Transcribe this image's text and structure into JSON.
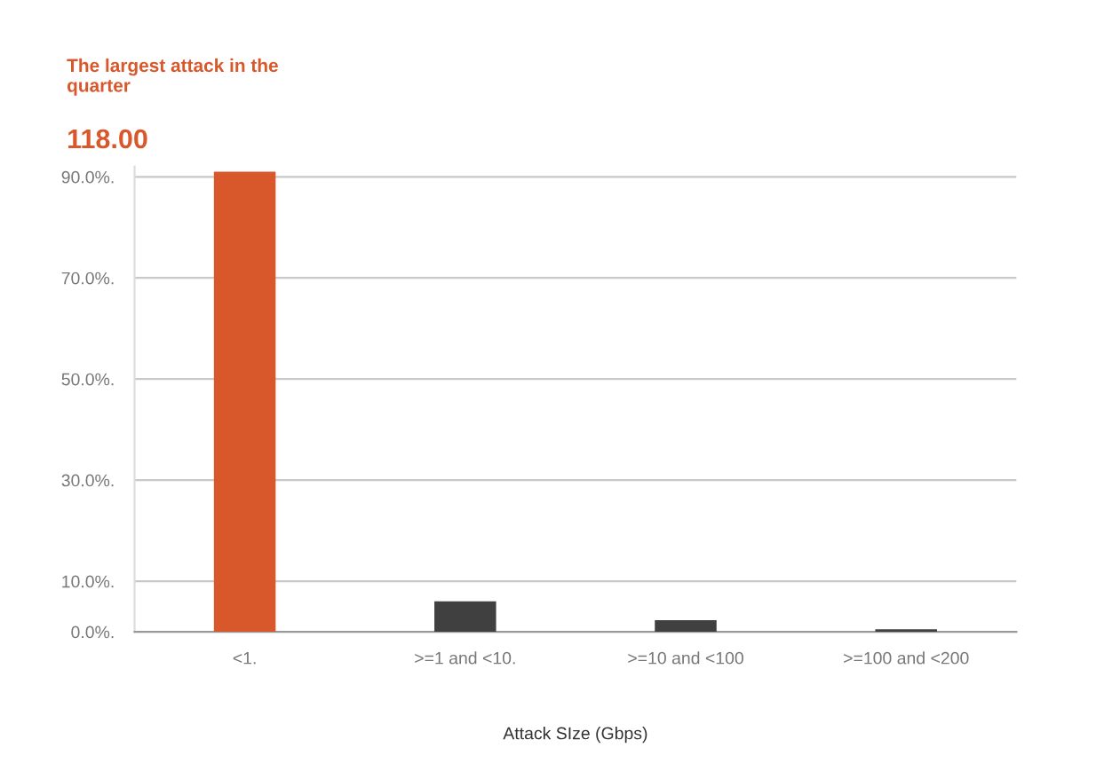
{
  "chart_data": {
    "type": "bar",
    "title": "The largest attack in the\nquarter",
    "subtitle": "118.00",
    "xlabel": "Attack SIze (Gbps)",
    "categories": [
      "<1.",
      ">=1 and <10.",
      ">=10 and <100",
      ">=100 and <200"
    ],
    "values": [
      91.0,
      6.0,
      2.3,
      0.5
    ],
    "colors": [
      "#d9582b",
      "#404040",
      "#404040",
      "#404040"
    ],
    "ylim": [
      0,
      92
    ],
    "yticks": [
      {
        "value": 0,
        "label": "0.0%."
      },
      {
        "value": 10,
        "label": "10.0%."
      },
      {
        "value": 30,
        "label": "30.0%."
      },
      {
        "value": 50,
        "label": "50.0%."
      },
      {
        "value": 70,
        "label": "70.0%."
      },
      {
        "value": 90,
        "label": "90.0%."
      }
    ],
    "grid": "y",
    "legend": false
  }
}
